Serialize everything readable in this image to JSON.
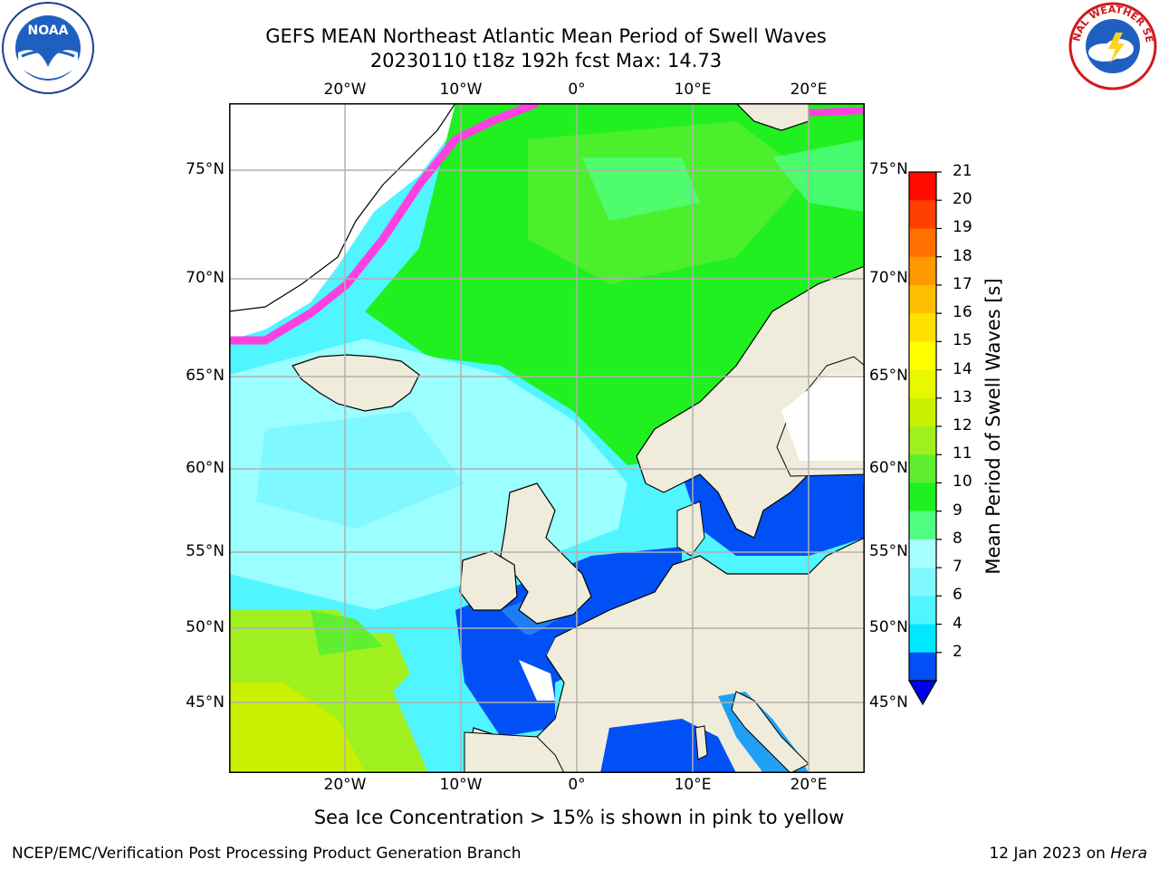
{
  "header": {
    "title_line1": "GEFS MEAN Northeast Atlantic Mean Period of Swell Waves",
    "title_line2": "20230110 t18z 192h fcst   Max: 14.73"
  },
  "logos": {
    "left": "NOAA",
    "right": "NATIONAL WEATHER SERVICE"
  },
  "map": {
    "lon_labels": [
      "20°W",
      "10°W",
      "0°",
      "10°E",
      "20°E"
    ],
    "lat_labels": [
      "75°N",
      "70°N",
      "65°N",
      "60°N",
      "55°N",
      "50°N",
      "45°N"
    ]
  },
  "colorbar": {
    "label": "Mean Period of Swell Waves [s]",
    "ticks": [
      "2",
      "4",
      "6",
      "7",
      "8",
      "9",
      "10",
      "11",
      "12",
      "13",
      "14",
      "15",
      "16",
      "17",
      "18",
      "19",
      "20",
      "21"
    ],
    "colors": [
      "#0050f5",
      "#00e8ff",
      "#50f5ff",
      "#80f8ff",
      "#a8ffff",
      "#50ff80",
      "#20f020",
      "#60ee30",
      "#a0f020",
      "#c8f000",
      "#e8f800",
      "#ffff00",
      "#ffe000",
      "#ffbf00",
      "#ff9900",
      "#ff7000",
      "#ff4000",
      "#ff0a00"
    ]
  },
  "caption": "Sea Ice Concentration > 15% is shown in pink to yellow",
  "footer": {
    "left": "NCEP/EMC/Verification Post Processing Product Generation Branch",
    "right_prefix": "12 Jan 2023 on ",
    "right_italic": "Hera"
  }
}
